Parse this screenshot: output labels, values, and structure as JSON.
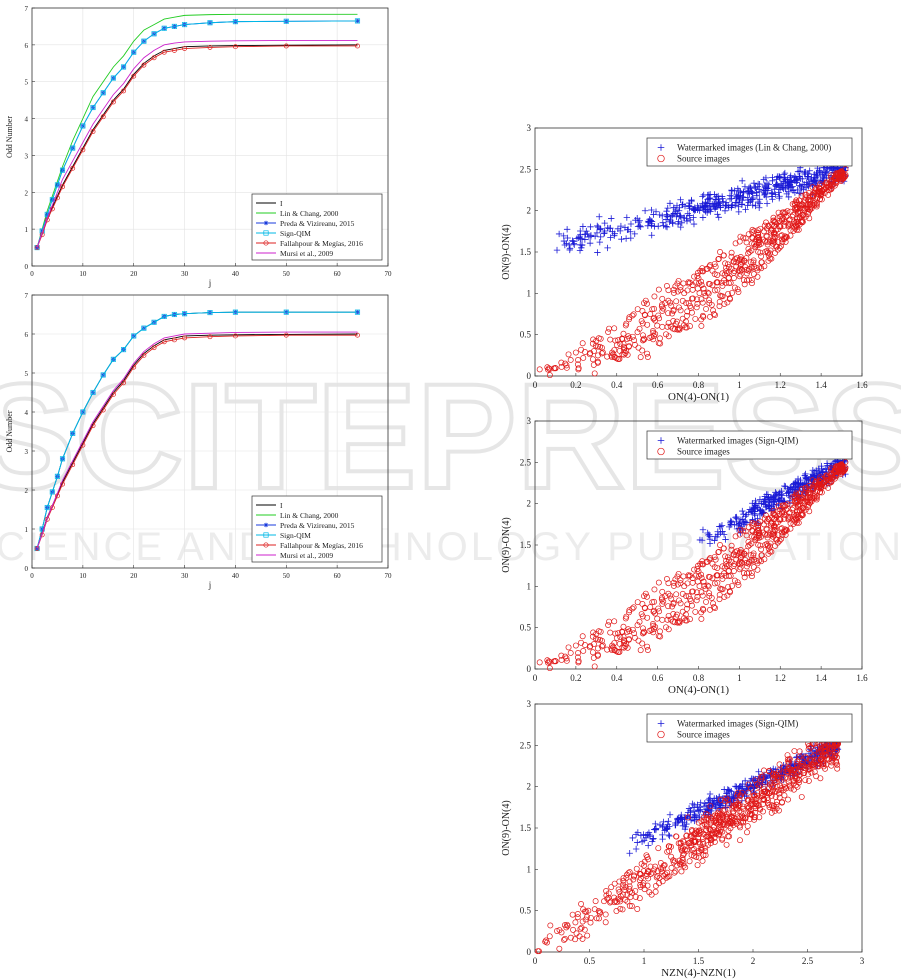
{
  "watermark": {
    "word": "SCITEPRESS",
    "tagline": "SCIENCE AND TECHNOLOGY PUBLICATIONS"
  },
  "chart_data": [
    {
      "type": "line",
      "xlabel": "j",
      "ylabel": "Odd Number",
      "xlim": [
        0,
        70
      ],
      "ylim": [
        0,
        7
      ],
      "xticks": [
        0,
        10,
        20,
        30,
        40,
        50,
        60,
        70
      ],
      "yticks": [
        0,
        1,
        2,
        3,
        4,
        5,
        6,
        7
      ],
      "grid": true,
      "legend_position": "bottom-right",
      "series": [
        {
          "name": "I",
          "color": "#000000",
          "marker": "none",
          "x": [
            1,
            2,
            3,
            4,
            5,
            6,
            8,
            10,
            12,
            14,
            16,
            18,
            20,
            22,
            24,
            26,
            28,
            30,
            35,
            40,
            50,
            64
          ],
          "y": [
            0.5,
            0.9,
            1.3,
            1.6,
            1.9,
            2.2,
            2.7,
            3.2,
            3.7,
            4.1,
            4.5,
            4.8,
            5.2,
            5.5,
            5.7,
            5.85,
            5.9,
            5.95,
            5.97,
            5.98,
            5.99,
            6.0
          ]
        },
        {
          "name": "Lin & Chang, 2000",
          "color": "#22cc22",
          "marker": "none",
          "x": [
            1,
            2,
            3,
            4,
            5,
            6,
            8,
            10,
            12,
            14,
            16,
            18,
            20,
            22,
            24,
            26,
            28,
            30,
            35,
            40,
            50,
            64
          ],
          "y": [
            0.5,
            1.0,
            1.5,
            1.9,
            2.3,
            2.7,
            3.4,
            4.0,
            4.6,
            5.0,
            5.4,
            5.7,
            6.1,
            6.4,
            6.55,
            6.7,
            6.75,
            6.8,
            6.82,
            6.83,
            6.83,
            6.83
          ]
        },
        {
          "name": "Preda & Vizireanu, 2015",
          "color": "#1a3bdc",
          "marker": "star",
          "x": [
            1,
            2,
            3,
            4,
            5,
            6,
            8,
            10,
            12,
            14,
            16,
            18,
            20,
            22,
            24,
            26,
            28,
            30,
            35,
            40,
            50,
            64
          ],
          "y": [
            0.5,
            0.95,
            1.4,
            1.8,
            2.2,
            2.6,
            3.2,
            3.8,
            4.3,
            4.7,
            5.1,
            5.4,
            5.8,
            6.1,
            6.3,
            6.45,
            6.5,
            6.55,
            6.6,
            6.63,
            6.64,
            6.65
          ]
        },
        {
          "name": "Sign-QIM",
          "color": "#00b8e6",
          "marker": "square",
          "x": [
            1,
            2,
            3,
            4,
            5,
            6,
            8,
            10,
            12,
            14,
            16,
            18,
            20,
            22,
            24,
            26,
            28,
            30,
            35,
            40,
            50,
            64
          ],
          "y": [
            0.5,
            0.95,
            1.4,
            1.8,
            2.2,
            2.6,
            3.2,
            3.8,
            4.3,
            4.7,
            5.1,
            5.4,
            5.8,
            6.1,
            6.3,
            6.45,
            6.5,
            6.55,
            6.6,
            6.63,
            6.64,
            6.65
          ]
        },
        {
          "name": "Fallahpour & Megías, 2016",
          "color": "#dd2222",
          "marker": "circle",
          "x": [
            1,
            2,
            3,
            4,
            5,
            6,
            8,
            10,
            12,
            14,
            16,
            18,
            20,
            22,
            24,
            26,
            28,
            30,
            35,
            40,
            50,
            64
          ],
          "y": [
            0.5,
            0.85,
            1.25,
            1.55,
            1.85,
            2.15,
            2.65,
            3.15,
            3.65,
            4.05,
            4.45,
            4.75,
            5.15,
            5.45,
            5.65,
            5.8,
            5.85,
            5.9,
            5.93,
            5.95,
            5.97,
            5.97
          ]
        },
        {
          "name": "Mursi et al., 2009",
          "color": "#cc22cc",
          "marker": "none",
          "x": [
            1,
            2,
            3,
            4,
            5,
            6,
            8,
            10,
            12,
            14,
            16,
            18,
            20,
            22,
            24,
            26,
            28,
            30,
            35,
            40,
            50,
            64
          ],
          "y": [
            0.5,
            0.9,
            1.3,
            1.65,
            2.0,
            2.35,
            2.85,
            3.35,
            3.85,
            4.25,
            4.65,
            4.95,
            5.35,
            5.65,
            5.85,
            6.0,
            6.05,
            6.08,
            6.1,
            6.11,
            6.12,
            6.12
          ]
        }
      ]
    },
    {
      "type": "line",
      "xlabel": "j",
      "ylabel": "Odd Number",
      "xlim": [
        0,
        70
      ],
      "ylim": [
        0,
        7
      ],
      "xticks": [
        0,
        10,
        20,
        30,
        40,
        50,
        60,
        70
      ],
      "yticks": [
        0,
        1,
        2,
        3,
        4,
        5,
        6,
        7
      ],
      "grid": true,
      "legend_position": "bottom-right",
      "series": [
        {
          "name": "I",
          "color": "#000000",
          "marker": "none",
          "x": [
            1,
            2,
            3,
            4,
            5,
            6,
            8,
            10,
            12,
            14,
            16,
            18,
            20,
            22,
            24,
            26,
            28,
            30,
            35,
            40,
            50,
            64
          ],
          "y": [
            0.5,
            0.9,
            1.3,
            1.6,
            1.9,
            2.2,
            2.7,
            3.2,
            3.7,
            4.1,
            4.5,
            4.8,
            5.2,
            5.5,
            5.7,
            5.85,
            5.9,
            5.95,
            5.97,
            5.98,
            5.99,
            6.0
          ]
        },
        {
          "name": "Lin & Chang, 2000",
          "color": "#22cc22",
          "marker": "none",
          "x": [
            1,
            2,
            3,
            4,
            5,
            6,
            8,
            10,
            12,
            14,
            16,
            18,
            20,
            22,
            24,
            26,
            28,
            30,
            35,
            40,
            50,
            64
          ],
          "y": [
            0.5,
            1.0,
            1.55,
            1.95,
            2.35,
            2.8,
            3.45,
            4.0,
            4.5,
            4.95,
            5.35,
            5.6,
            5.95,
            6.15,
            6.3,
            6.45,
            6.5,
            6.52,
            6.55,
            6.56,
            6.56,
            6.56
          ]
        },
        {
          "name": "Preda & Vizireanu, 2015",
          "color": "#1a3bdc",
          "marker": "star",
          "x": [
            1,
            2,
            3,
            4,
            5,
            6,
            8,
            10,
            12,
            14,
            16,
            18,
            20,
            22,
            24,
            26,
            28,
            30,
            35,
            40,
            50,
            64
          ],
          "y": [
            0.5,
            1.0,
            1.55,
            1.95,
            2.35,
            2.8,
            3.45,
            4.0,
            4.5,
            4.95,
            5.35,
            5.6,
            5.95,
            6.15,
            6.3,
            6.45,
            6.5,
            6.52,
            6.55,
            6.56,
            6.56,
            6.56
          ]
        },
        {
          "name": "Sign-QIM",
          "color": "#00b8e6",
          "marker": "square",
          "x": [
            1,
            2,
            3,
            4,
            5,
            6,
            8,
            10,
            12,
            14,
            16,
            18,
            20,
            22,
            24,
            26,
            28,
            30,
            35,
            40,
            50,
            64
          ],
          "y": [
            0.5,
            1.0,
            1.55,
            1.95,
            2.35,
            2.8,
            3.45,
            4.0,
            4.5,
            4.95,
            5.35,
            5.6,
            5.95,
            6.15,
            6.3,
            6.45,
            6.5,
            6.52,
            6.55,
            6.56,
            6.56,
            6.56
          ]
        },
        {
          "name": "Fallahpour & Megías, 2016",
          "color": "#dd2222",
          "marker": "circle",
          "x": [
            1,
            2,
            3,
            4,
            5,
            6,
            8,
            10,
            12,
            14,
            16,
            18,
            20,
            22,
            24,
            26,
            28,
            30,
            35,
            40,
            50,
            64
          ],
          "y": [
            0.5,
            0.85,
            1.25,
            1.55,
            1.85,
            2.15,
            2.65,
            3.15,
            3.65,
            4.05,
            4.45,
            4.75,
            5.15,
            5.45,
            5.65,
            5.8,
            5.85,
            5.9,
            5.93,
            5.95,
            5.97,
            5.97
          ]
        },
        {
          "name": "Mursi et al., 2009",
          "color": "#cc22cc",
          "marker": "none",
          "x": [
            1,
            2,
            3,
            4,
            5,
            6,
            8,
            10,
            12,
            14,
            16,
            18,
            20,
            22,
            24,
            26,
            28,
            30,
            35,
            40,
            50,
            64
          ],
          "y": [
            0.5,
            0.88,
            1.28,
            1.6,
            1.92,
            2.25,
            2.75,
            3.25,
            3.75,
            4.15,
            4.55,
            4.85,
            5.25,
            5.55,
            5.75,
            5.9,
            5.95,
            6.0,
            6.02,
            6.04,
            6.05,
            6.05
          ]
        }
      ]
    },
    {
      "type": "scatter",
      "xlabel": "ON(4)-ON(1)",
      "ylabel": "ON(9)-ON(4)",
      "xlim": [
        0,
        1.6
      ],
      "ylim": [
        0,
        3
      ],
      "xticks": [
        0,
        0.2,
        0.4,
        0.6,
        0.8,
        1,
        1.2,
        1.4,
        1.6
      ],
      "yticks": [
        0,
        0.5,
        1,
        1.5,
        2,
        2.5,
        3
      ],
      "legend_position": "top-right",
      "series": [
        {
          "name": "Watermarked images (Lin & Chang, 2000)",
          "color": "#1a1ad6",
          "marker": "plus",
          "cloud": "band",
          "count": 520,
          "xrange": [
            0.0,
            1.52
          ],
          "yline": [
            1.5,
            2.5
          ],
          "spread": 0.11,
          "seed": 11
        },
        {
          "name": "Source images",
          "color": "#e01818",
          "marker": "circle",
          "cloud": "wedge",
          "count": 680,
          "xrange": [
            0.0,
            1.52
          ],
          "yline": [
            0.0,
            2.5
          ],
          "spread": 0.32,
          "seed": 21
        }
      ]
    },
    {
      "type": "scatter",
      "xlabel": "ON(4)-ON(1)",
      "ylabel": "ON(9)-ON(4)",
      "xlim": [
        0,
        1.6
      ],
      "ylim": [
        0,
        3
      ],
      "xticks": [
        0,
        0.2,
        0.4,
        0.6,
        0.8,
        1,
        1.2,
        1.4,
        1.6
      ],
      "yticks": [
        0,
        0.5,
        1,
        1.5,
        2,
        2.5,
        3
      ],
      "legend_position": "top-right",
      "series": [
        {
          "name": "Watermarked images (Sign-QIM)",
          "color": "#1a1ad6",
          "marker": "plus",
          "cloud": "band",
          "count": 360,
          "xrange": [
            0.78,
            1.52
          ],
          "yline": [
            1.5,
            2.5
          ],
          "spread": 0.09,
          "seed": 31
        },
        {
          "name": "Source images",
          "color": "#e01818",
          "marker": "circle",
          "cloud": "wedge",
          "count": 680,
          "xrange": [
            0.0,
            1.52
          ],
          "yline": [
            0.0,
            2.5
          ],
          "spread": 0.32,
          "seed": 21
        }
      ]
    },
    {
      "type": "scatter",
      "xlabel": "NZN(4)-NZN(1)",
      "ylabel": "ON(9)-ON(4)",
      "xlim": [
        0,
        3
      ],
      "ylim": [
        0,
        3
      ],
      "xticks": [
        0,
        0.5,
        1,
        1.5,
        2,
        2.5,
        3
      ],
      "yticks": [
        0,
        0.5,
        1,
        1.5,
        2,
        2.5,
        3
      ],
      "legend_position": "top-right",
      "series": [
        {
          "name": "Watermarked images (Sign-QIM)",
          "color": "#1a1ad6",
          "marker": "plus",
          "cloud": "band",
          "count": 480,
          "xrange": [
            0.8,
            2.78
          ],
          "yline": [
            1.25,
            2.5
          ],
          "spread": 0.08,
          "seed": 41
        },
        {
          "name": "Source images",
          "color": "#e01818",
          "marker": "circle",
          "cloud": "band",
          "count": 720,
          "xrange": [
            0.0,
            2.78
          ],
          "yline": [
            0.0,
            2.5
          ],
          "spread": 0.18,
          "seed": 51
        }
      ]
    }
  ]
}
